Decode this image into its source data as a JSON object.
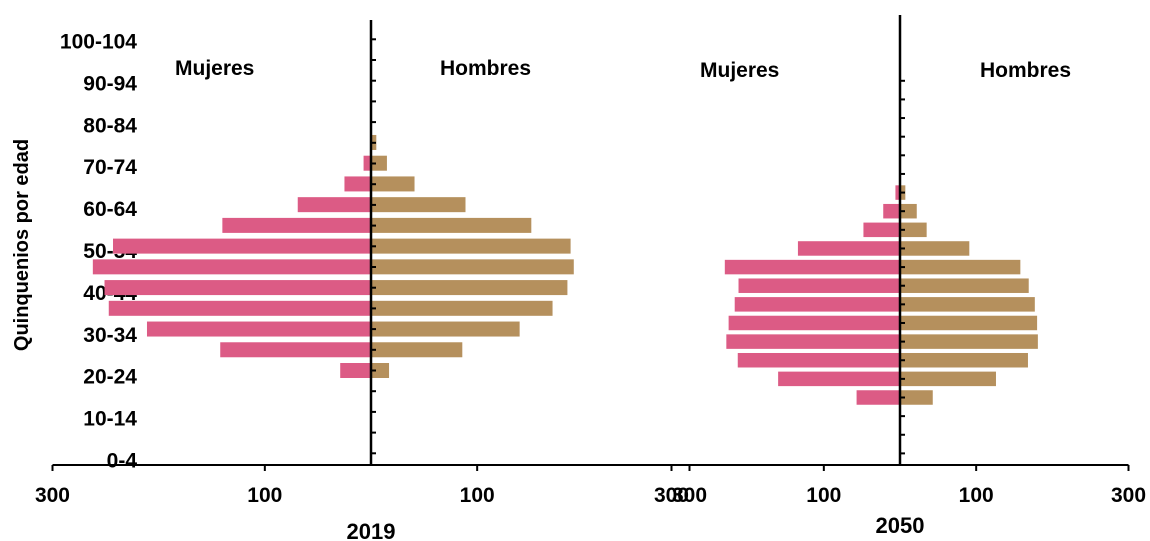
{
  "chart_data": {
    "type": "bar",
    "ylabel": "Quinquenios por edad",
    "age_tick_labels": [
      "0-4",
      "10-14",
      "20-24",
      "30-34",
      "40-44",
      "50-54",
      "60-64",
      "70-74",
      "80-84",
      "90-94",
      "100-104"
    ],
    "colors": {
      "mujeres": "#dc5b85",
      "hombres": "#b5905d",
      "axis": "#000000"
    },
    "charts": [
      {
        "title": "2019",
        "left_label": "Mujeres",
        "right_label": "Hombres",
        "x_tick_labels": [
          "300",
          "100",
          "100",
          "300"
        ],
        "xlim": [
          -300,
          300
        ],
        "categories": [
          "20-24",
          "25-29",
          "30-34",
          "35-39",
          "40-44",
          "45-49",
          "50-54",
          "55-59",
          "60-64",
          "65-69",
          "70-74",
          "75-79"
        ],
        "series": [
          {
            "name": "Mujeres",
            "values": [
              29,
              142,
              211,
              247,
              251,
              262,
              243,
              140,
              69,
              25,
              7,
              0
            ]
          },
          {
            "name": "Hombres",
            "values": [
              17,
              86,
              140,
              171,
              185,
              191,
              188,
              151,
              89,
              41,
              15,
              5
            ]
          }
        ]
      },
      {
        "title": "2050",
        "left_label": "Mujeres",
        "right_label": "Hombres",
        "x_tick_labels": [
          "300",
          "100",
          "100",
          "300"
        ],
        "xlim": [
          -300,
          300
        ],
        "categories": [
          "15-19",
          "20-24",
          "25-29",
          "30-34",
          "35-39",
          "40-44",
          "45-49",
          "50-54",
          "55-59",
          "60-64",
          "65-69",
          "70-74"
        ],
        "series": [
          {
            "name": "Mujeres",
            "values": [
              57,
              160,
              213,
              228,
              225,
              217,
              212,
              230,
              134,
              48,
              22,
              6
            ]
          },
          {
            "name": "Hombres",
            "values": [
              43,
              126,
              168,
              181,
              180,
              177,
              169,
              158,
              91,
              35,
              22,
              7
            ]
          }
        ]
      }
    ]
  }
}
